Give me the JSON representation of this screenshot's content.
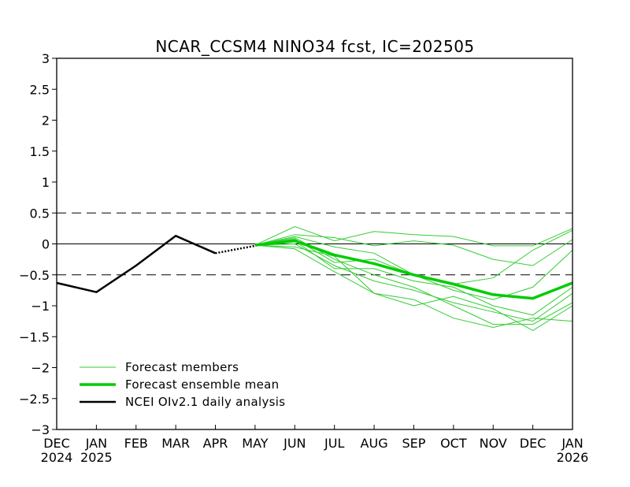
{
  "chart_data": {
    "type": "line",
    "title": "NCAR_CCSM4 NINO34 fcst, IC=202505",
    "xlabel": "",
    "ylabel": "",
    "x_ticks": [
      {
        "month": "DEC",
        "year": "2024"
      },
      {
        "month": "JAN",
        "year": "2025"
      },
      {
        "month": "FEB",
        "year": ""
      },
      {
        "month": "MAR",
        "year": ""
      },
      {
        "month": "APR",
        "year": ""
      },
      {
        "month": "MAY",
        "year": ""
      },
      {
        "month": "JUN",
        "year": ""
      },
      {
        "month": "JUL",
        "year": ""
      },
      {
        "month": "AUG",
        "year": ""
      },
      {
        "month": "SEP",
        "year": ""
      },
      {
        "month": "OCT",
        "year": ""
      },
      {
        "month": "NOV",
        "year": ""
      },
      {
        "month": "DEC",
        "year": ""
      },
      {
        "month": "JAN",
        "year": "2026"
      }
    ],
    "y_ticks": [
      "3",
      "2.5",
      "2",
      "1.5",
      "1",
      "0.5",
      "0",
      "-0.5",
      "-1",
      "-1.5",
      "-2",
      "-2.5",
      "-3"
    ],
    "ylim": [
      -3,
      3
    ],
    "reference_lines": {
      "dashed": [
        0.5,
        -0.5
      ],
      "solid": [
        0
      ]
    },
    "legend": {
      "position": "lower-left",
      "entries": [
        {
          "label": "Forecast members",
          "color": "#33cc33",
          "weight": "thin"
        },
        {
          "label": "Forecast ensemble mean",
          "color": "#00cc00",
          "weight": "thick"
        },
        {
          "label": "NCEI OIv2.1 daily analysis",
          "color": "#000000",
          "weight": "medium"
        }
      ]
    },
    "observed": {
      "color": "#000000",
      "solid": {
        "x": [
          0,
          1,
          2,
          3,
          4
        ],
        "y": [
          -0.63,
          -0.78,
          -0.35,
          0.13,
          -0.15
        ]
      },
      "dotted": {
        "x": [
          4,
          5
        ],
        "y": [
          -0.15,
          -0.03
        ]
      }
    },
    "members": {
      "color": "#33cc33",
      "x": [
        5,
        6,
        7,
        8,
        9,
        10,
        11,
        12,
        13
      ],
      "series": [
        [
          -0.02,
          0.28,
          0.05,
          0.2,
          0.15,
          0.12,
          -0.03,
          -0.03,
          0.25
        ],
        [
          -0.02,
          0.15,
          0.1,
          -0.03,
          0.05,
          -0.02,
          -0.25,
          -0.35,
          0.07
        ],
        [
          -0.02,
          0.12,
          -0.05,
          -0.15,
          -0.5,
          -0.65,
          -0.55,
          -0.1,
          0.22
        ],
        [
          -0.02,
          0.08,
          -0.3,
          -0.25,
          -0.5,
          -0.75,
          -0.9,
          -0.7,
          -0.1
        ],
        [
          -0.02,
          0.05,
          -0.4,
          -0.4,
          -0.6,
          -0.7,
          -1.0,
          -1.15,
          -0.7
        ],
        [
          -0.02,
          0.0,
          -0.35,
          -0.6,
          -0.75,
          -0.95,
          -1.1,
          -1.25,
          -0.8
        ],
        [
          -0.02,
          -0.05,
          -0.2,
          -0.8,
          -1.0,
          -0.85,
          -1.05,
          -1.4,
          -1.0
        ],
        [
          -0.02,
          -0.08,
          -0.45,
          -0.8,
          -0.9,
          -1.2,
          -1.35,
          -1.2,
          -1.25
        ],
        [
          -0.02,
          0.1,
          -0.25,
          -0.5,
          -0.7,
          -1.0,
          -1.3,
          -1.3,
          -0.95
        ]
      ]
    },
    "ensemble_mean": {
      "color": "#00cc00",
      "x": [
        5,
        6,
        7,
        8,
        9,
        10,
        11,
        12,
        13
      ],
      "y": [
        -0.02,
        0.05,
        -0.18,
        -0.32,
        -0.5,
        -0.65,
        -0.82,
        -0.88,
        -0.63
      ]
    }
  }
}
